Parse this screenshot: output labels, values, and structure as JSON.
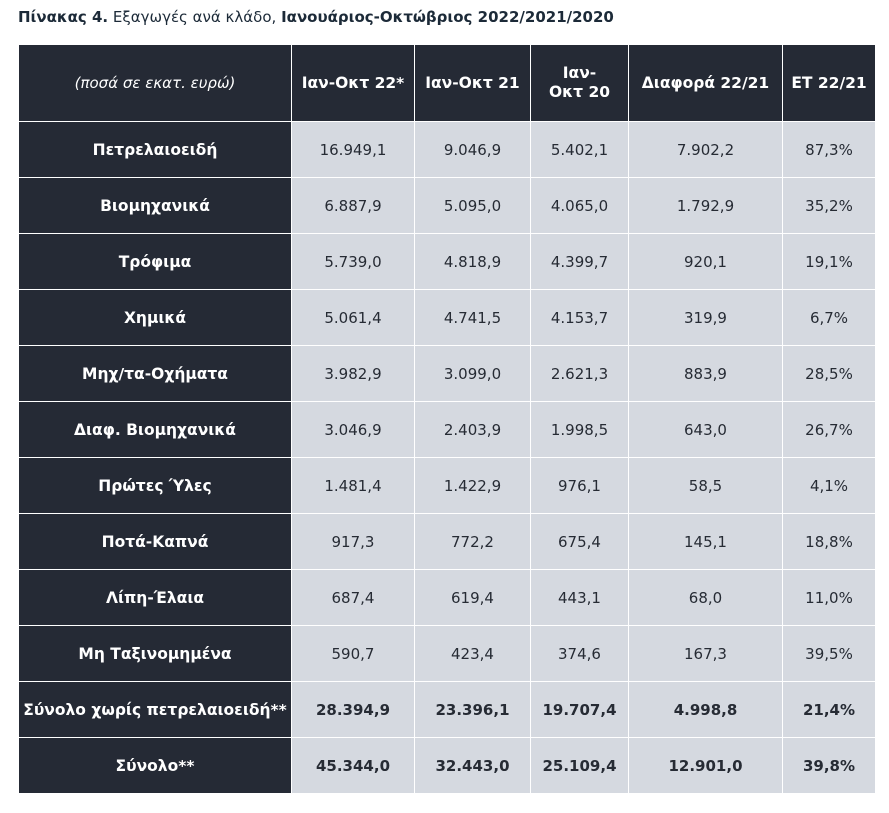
{
  "caption": {
    "prefix": "Πίνακας 4.",
    "middle": " Εξαγωγές ανά κλάδο, ",
    "bold_tail": "Ιανουάριος-Οκτώβριος 2022/2021/2020"
  },
  "table": {
    "units_note": "(ποσά σε εκατ. ευρώ)",
    "headers": [
      "Ιαν-Οκτ 22*",
      "Ιαν-Οκτ 21",
      "Ιαν-Οκτ 20",
      "Διαφορά 22/21",
      "ΕΤ 22/21"
    ],
    "rows": [
      {
        "label": "Πετρελαιοειδή",
        "values": [
          "16.949,1",
          "9.046,9",
          "5.402,1",
          "7.902,2",
          "87,3%"
        ]
      },
      {
        "label": "Βιομηχανικά",
        "values": [
          "6.887,9",
          "5.095,0",
          "4.065,0",
          "1.792,9",
          "35,2%"
        ]
      },
      {
        "label": "Τρόφιμα",
        "values": [
          "5.739,0",
          "4.818,9",
          "4.399,7",
          "920,1",
          "19,1%"
        ]
      },
      {
        "label": "Χημικά",
        "values": [
          "5.061,4",
          "4.741,5",
          "4.153,7",
          "319,9",
          "6,7%"
        ]
      },
      {
        "label": "Μηχ/τα-Οχήματα",
        "values": [
          "3.982,9",
          "3.099,0",
          "2.621,3",
          "883,9",
          "28,5%"
        ]
      },
      {
        "label": "Διαφ. Βιομηχανικά",
        "values": [
          "3.046,9",
          "2.403,9",
          "1.998,5",
          "643,0",
          "26,7%"
        ]
      },
      {
        "label": "Πρώτες Ύλες",
        "values": [
          "1.481,4",
          "1.422,9",
          "976,1",
          "58,5",
          "4,1%"
        ]
      },
      {
        "label": "Ποτά-Καπνά",
        "values": [
          "917,3",
          "772,2",
          "675,4",
          "145,1",
          "18,8%"
        ]
      },
      {
        "label": "Λίπη-Έλαια",
        "values": [
          "687,4",
          "619,4",
          "443,1",
          "68,0",
          "11,0%"
        ]
      },
      {
        "label": "Μη Ταξινομημένα",
        "values": [
          "590,7",
          "423,4",
          "374,6",
          "167,3",
          "39,5%"
        ]
      },
      {
        "label": "Σύνολο χωρίς πετρελαιοειδή**",
        "values": [
          "28.394,9",
          "23.396,1",
          "19.707,4",
          "4.998,8",
          "21,4%"
        ],
        "bold": true
      },
      {
        "label": "Σύνολο**",
        "values": [
          "45.344,0",
          "32.443,0",
          "25.109,4",
          "12.901,0",
          "39,8%"
        ],
        "bold": true
      }
    ]
  }
}
